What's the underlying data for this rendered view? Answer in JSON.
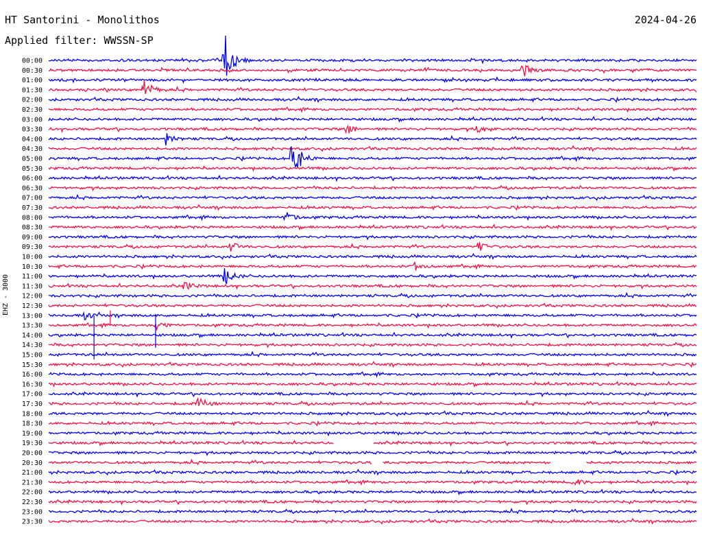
{
  "header": {
    "station": "HT Santorini - Monolithos",
    "date": "2024-04-26",
    "filter_label": "Applied filter:",
    "filter_value": "WWSSN-SP"
  },
  "chart_data": {
    "type": "line",
    "title": "HT Santorini - Monolithos",
    "subtitle": "Applied filter: WWSSN-SP",
    "ylabel": "EHZ - 3000",
    "date": "2024-04-26",
    "row_labels": [
      "00:00",
      "00:30",
      "01:00",
      "01:30",
      "02:00",
      "02:30",
      "03:00",
      "03:30",
      "04:00",
      "04:30",
      "05:00",
      "05:30",
      "06:00",
      "06:30",
      "07:00",
      "07:30",
      "08:00",
      "08:30",
      "09:00",
      "09:30",
      "10:00",
      "10:30",
      "11:00",
      "11:30",
      "12:00",
      "12:30",
      "13:00",
      "13:30",
      "14:00",
      "14:30",
      "15:00",
      "15:30",
      "16:00",
      "16:30",
      "17:00",
      "17:30",
      "18:00",
      "18:30",
      "19:00",
      "19:30",
      "20:00",
      "20:30",
      "21:00",
      "21:30",
      "22:00",
      "22:30",
      "23:00",
      "23:30"
    ],
    "row_colors": [
      "#0000ee",
      "#ee1144"
    ],
    "events": [
      {
        "row": 0,
        "pos": 0.27,
        "amp": 50
      },
      {
        "row": 1,
        "pos": 0.73,
        "amp": 14
      },
      {
        "row": 3,
        "pos": 0.145,
        "amp": 22
      },
      {
        "row": 7,
        "pos": 0.46,
        "amp": 8
      },
      {
        "row": 7,
        "pos": 0.66,
        "amp": 7
      },
      {
        "row": 8,
        "pos": 0.18,
        "amp": 10
      },
      {
        "row": 10,
        "pos": 0.375,
        "amp": 42
      },
      {
        "row": 16,
        "pos": 0.365,
        "amp": 9
      },
      {
        "row": 19,
        "pos": 0.28,
        "amp": 8
      },
      {
        "row": 19,
        "pos": 0.66,
        "amp": 10
      },
      {
        "row": 21,
        "pos": 0.565,
        "amp": 7
      },
      {
        "row": 22,
        "pos": 0.27,
        "amp": 16
      },
      {
        "row": 23,
        "pos": 0.21,
        "amp": 8
      },
      {
        "row": 26,
        "pos": 0.055,
        "amp": 6
      },
      {
        "row": 27,
        "pos": 0.165,
        "amp": 8
      },
      {
        "row": 35,
        "pos": 0.23,
        "amp": 12
      },
      {
        "row": 43,
        "pos": 0.81,
        "amp": 6
      }
    ],
    "spikes": [
      {
        "row": 25,
        "pos": 0.095,
        "top_row": 25.5,
        "bottom_row": 27
      },
      {
        "row": 26,
        "pos": 0.07,
        "top_row": 26,
        "bottom_row": 30.5
      },
      {
        "row": 26,
        "pos": 0.165,
        "top_row": 25.9,
        "bottom_row": 29.3
      }
    ],
    "gaps": [
      {
        "row": 39,
        "from": 0.44,
        "to": 0.5
      },
      {
        "row": 41,
        "from": 0.5,
        "to": 0.515
      },
      {
        "row": 41,
        "from": 0.775,
        "to": 0.83
      }
    ]
  }
}
